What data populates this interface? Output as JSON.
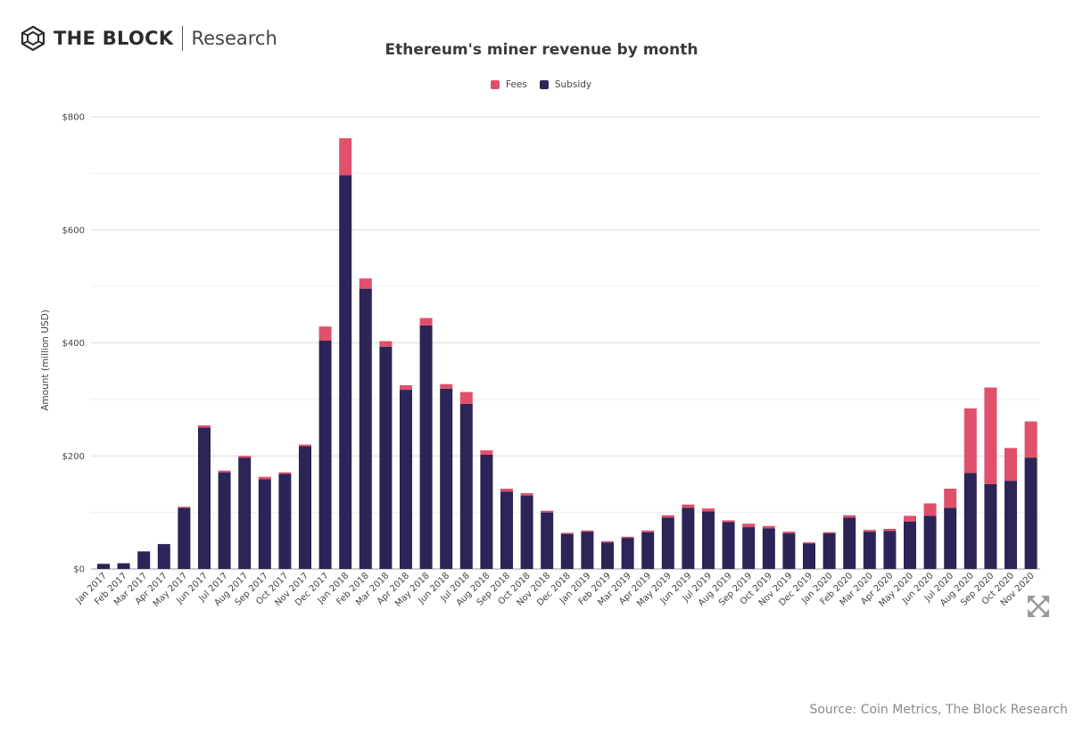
{
  "header": {
    "logo_text": "THE BLOCK",
    "logo_sub": "Research"
  },
  "source": "Source: Coin Metrics, The Block Research",
  "colors": {
    "fees": "#e0506a",
    "subsidy": "#2b2456",
    "grid": "#e6e6e6",
    "axis": "#555555"
  },
  "icons": {
    "logo": "cube-logo-icon",
    "expand": "expand-arrows-icon"
  },
  "chart_data": {
    "type": "bar",
    "stacked": true,
    "title": "Ethereum's miner revenue by month",
    "ylabel": "Amount (million USD)",
    "xlabel": "",
    "ylim": [
      0,
      800
    ],
    "yticks": [
      0,
      200,
      400,
      600,
      800
    ],
    "ytick_labels": [
      "$0",
      "$200",
      "$400",
      "$600",
      "$800"
    ],
    "grid": true,
    "legend_position": "top-center",
    "categories": [
      "Jan 2017",
      "Feb 2017",
      "Mar 2017",
      "Apr 2017",
      "May 2017",
      "Jun 2017",
      "Jul 2017",
      "Aug 2017",
      "Sep 2017",
      "Oct 2017",
      "Nov 2017",
      "Dec 2017",
      "Jan 2018",
      "Feb 2018",
      "Mar 2018",
      "Apr 2018",
      "May 2018",
      "Jun 2018",
      "Jul 2018",
      "Aug 2018",
      "Sep 2018",
      "Oct 2018",
      "Nov 2018",
      "Dec 2018",
      "Jan 2019",
      "Feb 2019",
      "Mar 2019",
      "Apr 2019",
      "May 2019",
      "Jun 2019",
      "Jul 2019",
      "Aug 2019",
      "Sep 2019",
      "Oct 2019",
      "Nov 2019",
      "Dec 2019",
      "Jan 2020",
      "Feb 2020",
      "Mar 2020",
      "Apr 2020",
      "May 2020",
      "Jun 2020",
      "Jul 2020",
      "Aug 2020",
      "Sep 2020",
      "Oct 2020",
      "Nov 2020"
    ],
    "series": [
      {
        "name": "Subsidy",
        "color": "#2b2456",
        "values": [
          9,
          10,
          31,
          44,
          108,
          250,
          171,
          197,
          159,
          168,
          217,
          404,
          697,
          496,
          393,
          317,
          431,
          319,
          292,
          202,
          137,
          130,
          100,
          62,
          66,
          47,
          55,
          65,
          91,
          108,
          102,
          83,
          74,
          72,
          63,
          45,
          63,
          91,
          66,
          67,
          84,
          94,
          108,
          170,
          150,
          156,
          197
        ]
      },
      {
        "name": "Fees",
        "color": "#e0506a",
        "values": [
          0,
          0,
          0,
          0,
          2,
          4,
          3,
          3,
          4,
          3,
          3,
          25,
          65,
          18,
          10,
          8,
          13,
          8,
          21,
          8,
          5,
          4,
          3,
          2,
          2,
          2,
          2,
          3,
          4,
          6,
          5,
          3,
          6,
          4,
          3,
          2,
          2,
          4,
          3,
          4,
          10,
          22,
          34,
          114,
          171,
          58,
          64
        ]
      }
    ]
  }
}
